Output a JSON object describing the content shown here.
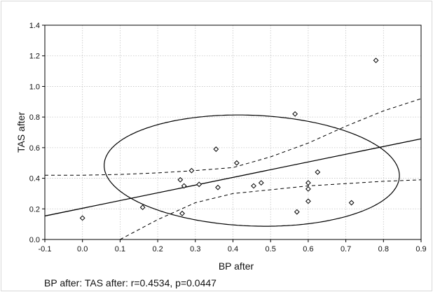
{
  "chart_data": {
    "type": "scatter",
    "title": "",
    "xlabel": "BP after",
    "ylabel": "TAS after",
    "xlim": [
      -0.1,
      0.9
    ],
    "ylim": [
      0.0,
      1.4
    ],
    "x_ticks": [
      -0.1,
      0.0,
      0.1,
      0.2,
      0.3,
      0.4,
      0.5,
      0.6,
      0.7,
      0.8,
      0.9
    ],
    "y_ticks": [
      0.0,
      0.2,
      0.4,
      0.6,
      0.8,
      1.0,
      1.2,
      1.4
    ],
    "x_tick_labels": [
      "-0.1",
      "0.0",
      "0.1",
      "0.2",
      "0.3",
      "0.4",
      "0.5",
      "0.6",
      "0.7",
      "0.8",
      "0.9"
    ],
    "y_tick_labels": [
      "0.0",
      "0.2",
      "0.4",
      "0.6",
      "0.8",
      "1.0",
      "1.2",
      "1.4"
    ],
    "grid": true,
    "points": [
      {
        "x": 0.0,
        "y": 0.14
      },
      {
        "x": 0.16,
        "y": 0.21
      },
      {
        "x": 0.26,
        "y": 0.39
      },
      {
        "x": 0.265,
        "y": 0.17
      },
      {
        "x": 0.27,
        "y": 0.35
      },
      {
        "x": 0.29,
        "y": 0.45
      },
      {
        "x": 0.31,
        "y": 0.36
      },
      {
        "x": 0.355,
        "y": 0.59
      },
      {
        "x": 0.36,
        "y": 0.34
      },
      {
        "x": 0.41,
        "y": 0.5
      },
      {
        "x": 0.455,
        "y": 0.35
      },
      {
        "x": 0.475,
        "y": 0.37
      },
      {
        "x": 0.565,
        "y": 0.82
      },
      {
        "x": 0.57,
        "y": 0.18
      },
      {
        "x": 0.6,
        "y": 0.37
      },
      {
        "x": 0.6,
        "y": 0.33
      },
      {
        "x": 0.6,
        "y": 0.25
      },
      {
        "x": 0.625,
        "y": 0.44
      },
      {
        "x": 0.715,
        "y": 0.24
      },
      {
        "x": 0.78,
        "y": 1.17
      }
    ],
    "regression": {
      "intercept": 0.204,
      "slope": 0.504
    },
    "confidence_band": {
      "upper": [
        [
          -0.1,
          0.42
        ],
        [
          0.0,
          0.42
        ],
        [
          0.1,
          0.425
        ],
        [
          0.2,
          0.435
        ],
        [
          0.3,
          0.45
        ],
        [
          0.4,
          0.47
        ],
        [
          0.5,
          0.54
        ],
        [
          0.6,
          0.63
        ],
        [
          0.7,
          0.74
        ],
        [
          0.8,
          0.84
        ],
        [
          0.9,
          0.92
        ]
      ],
      "lower": [
        [
          0.1,
          0.0
        ],
        [
          0.2,
          0.13
        ],
        [
          0.3,
          0.24
        ],
        [
          0.4,
          0.3
        ],
        [
          0.5,
          0.325
        ],
        [
          0.6,
          0.35
        ],
        [
          0.7,
          0.365
        ],
        [
          0.8,
          0.38
        ],
        [
          0.9,
          0.39
        ]
      ]
    },
    "ellipse": {
      "cx": 0.45,
      "cy": 0.45,
      "rx": 0.4,
      "ry": 0.355,
      "rotation": -25
    },
    "annotation": "BP after: TAS after: r=0.4534, p=0.0447"
  }
}
